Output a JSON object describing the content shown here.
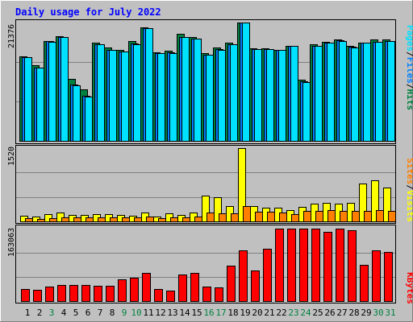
{
  "chart_data": [
    {
      "type": "bar",
      "title": "Daily usage for July 2022",
      "categories": [
        "1",
        "2",
        "3",
        "4",
        "5",
        "6",
        "7",
        "8",
        "9",
        "10",
        "11",
        "12",
        "13",
        "14",
        "15",
        "16",
        "17",
        "18",
        "19",
        "20",
        "21",
        "22",
        "23",
        "24",
        "25",
        "26",
        "27",
        "28",
        "29",
        "30",
        "31"
      ],
      "weekend_days": [
        "3",
        "9",
        "10",
        "16",
        "17",
        "23",
        "24",
        "30",
        "31"
      ],
      "ylabel": [
        "Pages",
        "/",
        "Files",
        "/",
        "Hits"
      ],
      "ymax_label": "21376",
      "ylim": [
        0,
        21376
      ],
      "grid": true,
      "series": [
        {
          "name": "Hits",
          "color": "#008040",
          "values": [
            15300,
            13600,
            18100,
            18900,
            11200,
            9300,
            17700,
            16900,
            16500,
            18100,
            20500,
            16000,
            16300,
            19300,
            18700,
            15900,
            16900,
            17800,
            21376,
            16700,
            16700,
            16500,
            17200,
            11000,
            17400,
            17900,
            18300,
            17100,
            17800,
            18300,
            18300
          ]
        },
        {
          "name": "Files",
          "color": "#0080ff",
          "values": [
            15100,
            13300,
            18000,
            18800,
            10200,
            8100,
            17500,
            16500,
            16200,
            17600,
            20300,
            15800,
            16000,
            18800,
            18500,
            15600,
            16600,
            17500,
            21376,
            16600,
            16600,
            16400,
            17100,
            10700,
            17200,
            17800,
            18200,
            17000,
            17700,
            17900,
            18100
          ]
        },
        {
          "name": "Pages",
          "color": "#00e0ff",
          "values": [
            15100,
            13300,
            17900,
            18800,
            10100,
            8000,
            17500,
            16500,
            16200,
            17500,
            20300,
            15800,
            15900,
            18700,
            18500,
            15500,
            16500,
            17400,
            21376,
            16600,
            16600,
            16400,
            17100,
            10600,
            17200,
            17700,
            18100,
            16900,
            17700,
            17900,
            18000
          ]
        }
      ]
    },
    {
      "type": "bar",
      "ylabel": [
        "Sites",
        "/",
        "Visits"
      ],
      "ymax_label": "1520",
      "ylim": [
        0,
        1520
      ],
      "grid": true,
      "series": [
        {
          "name": "Visits",
          "color": "#ffff00",
          "values": [
            110,
            100,
            150,
            190,
            140,
            140,
            150,
            150,
            130,
            120,
            190,
            100,
            160,
            140,
            180,
            540,
            500,
            320,
            1520,
            320,
            280,
            290,
            240,
            300,
            360,
            380,
            370,
            380,
            780,
            860,
            700
          ]
        },
        {
          "name": "Sites",
          "color": "#ff8000",
          "values": [
            60,
            50,
            70,
            90,
            80,
            80,
            80,
            80,
            80,
            80,
            100,
            60,
            80,
            80,
            100,
            180,
            170,
            170,
            320,
            200,
            200,
            190,
            150,
            210,
            220,
            230,
            220,
            220,
            210,
            230,
            220
          ]
        }
      ]
    },
    {
      "type": "bar",
      "ylabel": [
        "KBytes"
      ],
      "ymax_label": "163063",
      "ylim": [
        0,
        163063
      ],
      "grid": true,
      "series": [
        {
          "name": "KBytes",
          "color": "#ff0000",
          "values": [
            28000,
            26000,
            33000,
            36000,
            37000,
            37000,
            34000,
            34000,
            49000,
            53000,
            63000,
            27000,
            24000,
            60000,
            64000,
            33000,
            31000,
            79000,
            115000,
            68000,
            118000,
            163063,
            163063,
            163063,
            163063,
            156000,
            163063,
            159000,
            82000,
            115000,
            111000
          ]
        }
      ]
    }
  ]
}
